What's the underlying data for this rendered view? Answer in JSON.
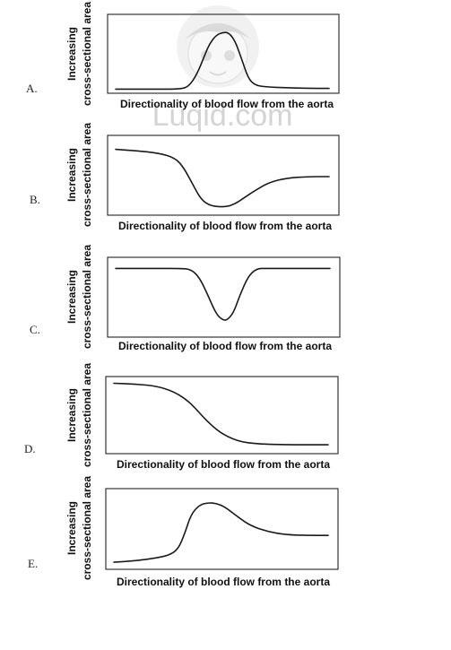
{
  "watermark": {
    "text": "Luqid.com"
  },
  "chart_data": [
    {
      "type": "line",
      "option": "A.",
      "xlabel": "Directionality of blood flow from the aorta",
      "ylabel": [
        "Increasing",
        "cross-sectional area"
      ],
      "x": [
        0,
        0.1,
        0.2,
        0.3,
        0.34,
        0.38,
        0.42,
        0.44,
        0.47,
        0.5,
        0.53,
        0.56,
        0.59,
        0.62,
        0.65,
        0.7,
        0.8,
        0.9,
        1.0
      ],
      "y": [
        0.02,
        0.02,
        0.02,
        0.02,
        0.05,
        0.22,
        0.52,
        0.66,
        0.78,
        0.82,
        0.82,
        0.7,
        0.45,
        0.18,
        0.08,
        0.05,
        0.04,
        0.03,
        0.03
      ]
    },
    {
      "type": "line",
      "option": "B.",
      "xlabel": "Directionality of blood flow from the aorta",
      "ylabel": [
        "Increasing",
        "cross-sectional area"
      ],
      "x": [
        0,
        0.1,
        0.2,
        0.28,
        0.32,
        0.36,
        0.4,
        0.44,
        0.48,
        0.52,
        0.56,
        0.6,
        0.66,
        0.72,
        0.8,
        0.9,
        1.0
      ],
      "y": [
        0.88,
        0.86,
        0.83,
        0.76,
        0.62,
        0.4,
        0.18,
        0.1,
        0.08,
        0.08,
        0.12,
        0.2,
        0.32,
        0.42,
        0.48,
        0.5,
        0.5
      ]
    },
    {
      "type": "line",
      "option": "C.",
      "xlabel": "Directionality of blood flow from the aorta",
      "ylabel": [
        "Increasing",
        "cross-sectional area"
      ],
      "x": [
        0,
        0.1,
        0.2,
        0.3,
        0.35,
        0.39,
        0.43,
        0.47,
        0.5,
        0.52,
        0.55,
        0.58,
        0.62,
        0.66,
        0.7,
        0.8,
        0.9,
        1.0
      ],
      "y": [
        0.92,
        0.92,
        0.92,
        0.92,
        0.91,
        0.8,
        0.55,
        0.28,
        0.2,
        0.2,
        0.3,
        0.55,
        0.82,
        0.92,
        0.92,
        0.92,
        0.92,
        0.92
      ]
    },
    {
      "type": "line",
      "option": "D.",
      "xlabel": "Directionality of blood flow from the aorta",
      "ylabel": [
        "Increasing",
        "cross-sectional area"
      ],
      "x": [
        0,
        0.1,
        0.2,
        0.28,
        0.34,
        0.38,
        0.42,
        0.46,
        0.5,
        0.55,
        0.6,
        0.65,
        0.7,
        0.8,
        0.9,
        1.0
      ],
      "y": [
        0.98,
        0.97,
        0.94,
        0.86,
        0.74,
        0.62,
        0.48,
        0.36,
        0.26,
        0.18,
        0.13,
        0.11,
        0.1,
        0.09,
        0.09,
        0.09
      ]
    },
    {
      "type": "line",
      "option": "E.",
      "xlabel": "Directionality of blood flow from the aorta",
      "ylabel": [
        "Increasing",
        "cross-sectional area"
      ],
      "x": [
        0,
        0.1,
        0.2,
        0.26,
        0.3,
        0.33,
        0.36,
        0.4,
        0.44,
        0.48,
        0.52,
        0.58,
        0.64,
        0.72,
        0.8,
        0.9,
        1.0
      ],
      "y": [
        0.06,
        0.08,
        0.12,
        0.16,
        0.24,
        0.45,
        0.72,
        0.85,
        0.88,
        0.87,
        0.82,
        0.68,
        0.56,
        0.48,
        0.44,
        0.43,
        0.43
      ]
    }
  ]
}
